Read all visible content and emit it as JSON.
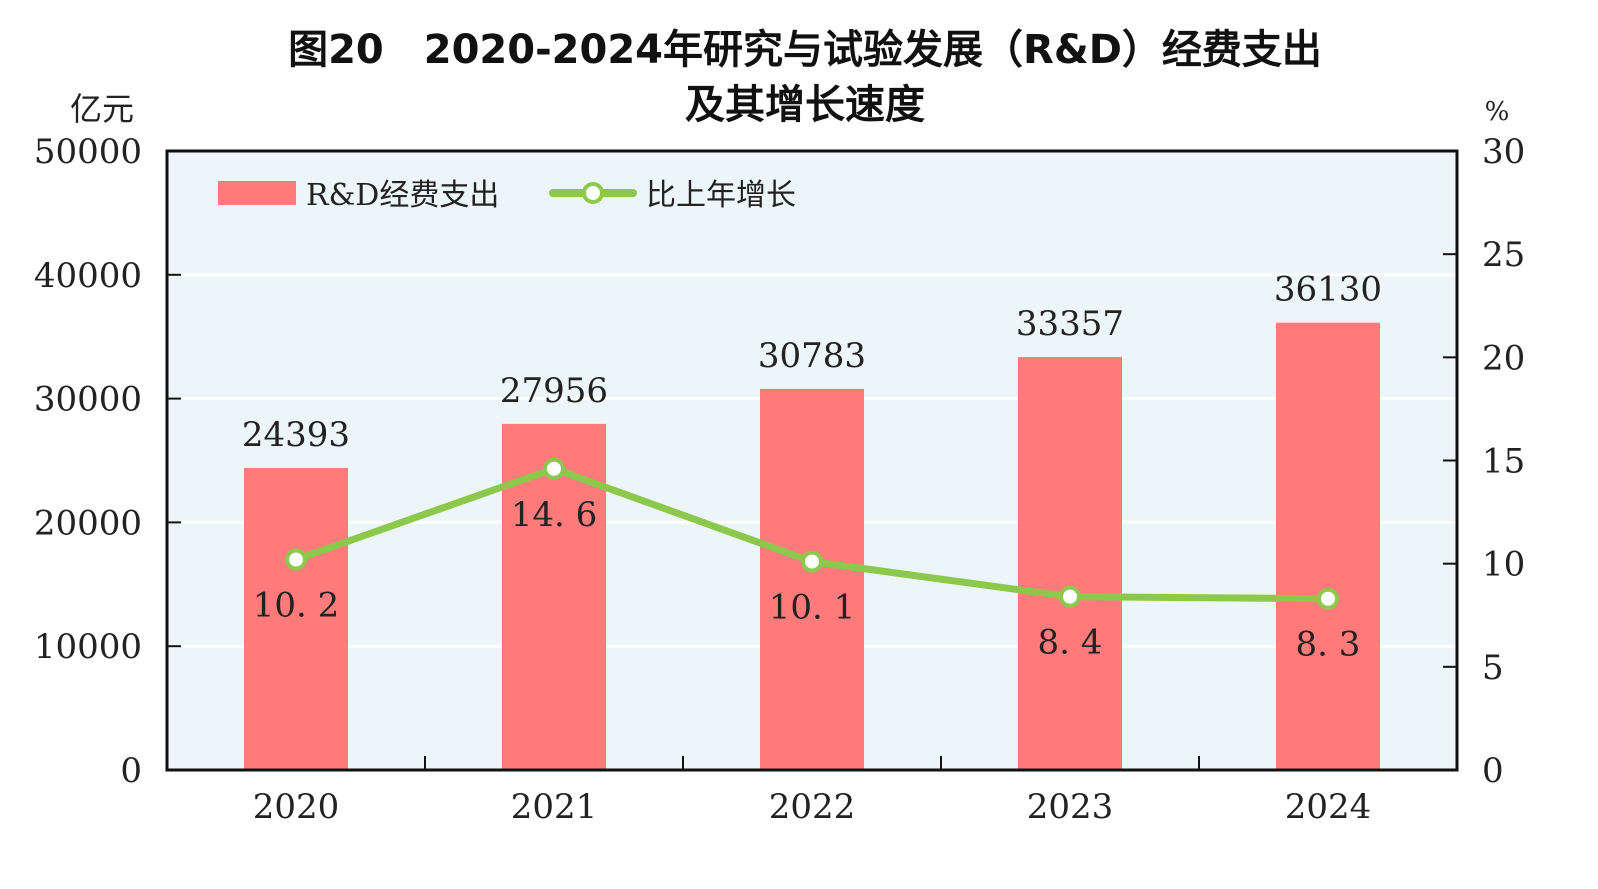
{
  "chart_data": {
    "type": "bar",
    "title_line1": "图20　2020-2024年研究与试验发展（R&D）经费支出",
    "title_line2": "及其增长速度",
    "ylabel_left": "亿元",
    "ylabel_right": "%",
    "categories": [
      "2020",
      "2021",
      "2022",
      "2023",
      "2024"
    ],
    "ylim_left": [
      0,
      50000
    ],
    "ylim_right": [
      0,
      30
    ],
    "yticks_left": [
      "0",
      "10000",
      "20000",
      "30000",
      "40000",
      "50000"
    ],
    "yticks_right": [
      "0",
      "5",
      "10",
      "15",
      "20",
      "25",
      "30"
    ],
    "grid": true,
    "legend_placement": "top-left",
    "series": [
      {
        "name": "R&D经费支出",
        "type": "bar",
        "axis": "left",
        "color": "#ff7b7b",
        "values": [
          24393,
          27956,
          30783,
          33357,
          36130
        ],
        "labels": [
          "24393",
          "27956",
          "30783",
          "33357",
          "36130"
        ]
      },
      {
        "name": "比上年增长",
        "type": "line",
        "axis": "right",
        "color": "#8cc84b",
        "values": [
          10.2,
          14.6,
          10.1,
          8.4,
          8.3
        ],
        "labels": [
          "10. 2",
          "14. 6",
          "10. 1",
          "8. 4",
          "8. 3"
        ]
      }
    ],
    "plot_background": "#ecf5f8"
  }
}
